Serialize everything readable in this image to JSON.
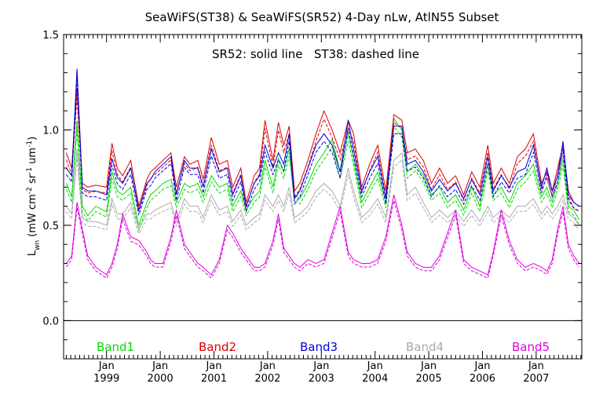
{
  "chart_data": {
    "type": "line",
    "title": "SeaWiFS(ST38) & SeaWiFS(SR52) 4-Day nLw, AtlN55 Subset",
    "annotation": "SR52: solid line   ST38: dashed line",
    "ylabel": "L_wn (mW cm^-2 sr^-1 um^-1)",
    "ylabel_main": "L",
    "ylabel_sub": "wn",
    "ylabel_rest": " (mW cm",
    "ylabel_exp1": "-2",
    "ylabel_mid": " sr",
    "ylabel_exp2": "-1",
    "ylabel_mid2": " um",
    "ylabel_exp3": "-1",
    "ylabel_end": ")",
    "ylim": [
      -0.2,
      1.5
    ],
    "xlim": [
      1998.2,
      2007.85
    ],
    "yticks": [
      0.0,
      0.5,
      1.0,
      1.5
    ],
    "ytick_labels": [
      "0.0",
      "0.5",
      "1.0",
      "1.5"
    ],
    "zero_line": 0.0,
    "xticks_top_label": "Jan",
    "xticks": [
      1999,
      2000,
      2001,
      2002,
      2003,
      2004,
      2005,
      2006,
      2007
    ],
    "xtick_labels": [
      "1999",
      "2000",
      "2001",
      "2002",
      "2003",
      "2004",
      "2005",
      "2006",
      "2007"
    ],
    "legend_placement": "bottom",
    "series": [
      {
        "name": "Band1",
        "color": "#00dd00",
        "x": [
          1998.25,
          1998.35,
          1998.45,
          1998.55,
          1998.65,
          1998.8,
          1999.0,
          1999.1,
          1999.2,
          1999.3,
          1999.45,
          1999.6,
          1999.75,
          1999.82,
          1999.9,
          2000.05,
          2000.2,
          2000.3,
          2000.45,
          2000.55,
          2000.7,
          2000.8,
          2000.95,
          2001.1,
          2001.25,
          2001.35,
          2001.5,
          2001.6,
          2001.75,
          2001.85,
          2001.95,
          2002.1,
          2002.2,
          2002.3,
          2002.4,
          2002.5,
          2002.6,
          2002.75,
          2002.9,
          2003.05,
          2003.2,
          2003.35,
          2003.5,
          2003.6,
          2003.75,
          2003.9,
          2004.05,
          2004.2,
          2004.35,
          2004.5,
          2004.6,
          2004.75,
          2004.9,
          2005.05,
          2005.2,
          2005.35,
          2005.5,
          2005.65,
          2005.8,
          2005.95,
          2006.1,
          2006.2,
          2006.35,
          2006.5,
          2006.65,
          2006.8,
          2006.95,
          2007.1,
          2007.2,
          2007.3,
          2007.4,
          2007.5,
          2007.6,
          2007.7,
          2007.8
        ],
        "values": [
          0.72,
          0.65,
          1.05,
          0.6,
          0.55,
          0.6,
          0.57,
          0.78,
          0.68,
          0.66,
          0.7,
          0.5,
          0.62,
          0.66,
          0.68,
          0.72,
          0.74,
          0.62,
          0.72,
          0.7,
          0.72,
          0.65,
          0.76,
          0.7,
          0.72,
          0.6,
          0.68,
          0.58,
          0.65,
          0.68,
          0.84,
          0.7,
          0.85,
          0.78,
          0.9,
          0.66,
          0.64,
          0.72,
          0.82,
          0.88,
          0.95,
          0.78,
          0.98,
          0.85,
          0.62,
          0.7,
          0.78,
          0.62,
          1.06,
          1.0,
          0.78,
          0.82,
          0.76,
          0.66,
          0.7,
          0.62,
          0.66,
          0.58,
          0.7,
          0.6,
          0.82,
          0.66,
          0.7,
          0.62,
          0.72,
          0.76,
          0.82,
          0.65,
          0.7,
          0.62,
          0.72,
          0.85,
          0.6,
          0.58,
          0.53
        ]
      },
      {
        "name": "Band2",
        "color": "#dd0000",
        "x": [
          1998.25,
          1998.35,
          1998.45,
          1998.55,
          1998.65,
          1998.8,
          1999.0,
          1999.1,
          1999.2,
          1999.3,
          1999.45,
          1999.6,
          1999.75,
          1999.82,
          1999.9,
          2000.05,
          2000.2,
          2000.3,
          2000.45,
          2000.55,
          2000.7,
          2000.8,
          2000.95,
          2001.1,
          2001.25,
          2001.35,
          2001.5,
          2001.6,
          2001.75,
          2001.85,
          2001.95,
          2002.1,
          2002.2,
          2002.3,
          2002.4,
          2002.5,
          2002.6,
          2002.75,
          2002.9,
          2003.05,
          2003.2,
          2003.35,
          2003.5,
          2003.6,
          2003.75,
          2003.9,
          2004.05,
          2004.2,
          2004.35,
          2004.5,
          2004.6,
          2004.75,
          2004.9,
          2005.05,
          2005.2,
          2005.35,
          2005.5,
          2005.65,
          2005.8,
          2005.95,
          2006.1,
          2006.2,
          2006.35,
          2006.5,
          2006.65,
          2006.8,
          2006.95,
          2007.1,
          2007.2,
          2007.3,
          2007.4,
          2007.5,
          2007.6,
          2007.7,
          2007.8
        ],
        "values": [
          0.88,
          0.8,
          1.22,
          0.72,
          0.7,
          0.71,
          0.7,
          0.93,
          0.8,
          0.76,
          0.84,
          0.6,
          0.74,
          0.78,
          0.8,
          0.84,
          0.88,
          0.7,
          0.86,
          0.82,
          0.84,
          0.74,
          0.96,
          0.82,
          0.84,
          0.7,
          0.8,
          0.62,
          0.76,
          0.8,
          1.05,
          0.84,
          1.04,
          0.92,
          1.02,
          0.68,
          0.72,
          0.84,
          0.98,
          1.1,
          1.0,
          0.88,
          1.05,
          0.98,
          0.7,
          0.82,
          0.92,
          0.68,
          1.08,
          1.05,
          0.88,
          0.9,
          0.84,
          0.72,
          0.8,
          0.72,
          0.76,
          0.66,
          0.78,
          0.7,
          0.92,
          0.72,
          0.8,
          0.72,
          0.86,
          0.9,
          0.98,
          0.72,
          0.78,
          0.68,
          0.8,
          0.92,
          0.68,
          0.62,
          0.6
        ]
      },
      {
        "name": "Band3",
        "color": "#0000dd",
        "x": [
          1998.25,
          1998.35,
          1998.45,
          1998.55,
          1998.65,
          1998.8,
          1999.0,
          1999.1,
          1999.2,
          1999.3,
          1999.45,
          1999.6,
          1999.75,
          1999.82,
          1999.9,
          2000.05,
          2000.2,
          2000.3,
          2000.45,
          2000.55,
          2000.7,
          2000.8,
          2000.95,
          2001.1,
          2001.25,
          2001.35,
          2001.5,
          2001.6,
          2001.75,
          2001.85,
          2001.95,
          2002.1,
          2002.2,
          2002.3,
          2002.4,
          2002.5,
          2002.6,
          2002.75,
          2002.9,
          2003.05,
          2003.2,
          2003.35,
          2003.5,
          2003.6,
          2003.75,
          2003.9,
          2004.05,
          2004.2,
          2004.35,
          2004.5,
          2004.6,
          2004.75,
          2004.9,
          2005.05,
          2005.2,
          2005.35,
          2005.5,
          2005.65,
          2005.8,
          2005.95,
          2006.1,
          2006.2,
          2006.35,
          2006.5,
          2006.65,
          2006.8,
          2006.95,
          2007.1,
          2007.2,
          2007.3,
          2007.4,
          2007.5,
          2007.6,
          2007.7,
          2007.8
        ],
        "values": [
          0.8,
          0.76,
          1.32,
          0.7,
          0.68,
          0.68,
          0.66,
          0.85,
          0.75,
          0.72,
          0.8,
          0.58,
          0.72,
          0.74,
          0.78,
          0.82,
          0.86,
          0.66,
          0.84,
          0.8,
          0.8,
          0.7,
          0.9,
          0.78,
          0.8,
          0.66,
          0.76,
          0.6,
          0.72,
          0.76,
          0.92,
          0.8,
          0.88,
          0.82,
          0.98,
          0.64,
          0.68,
          0.8,
          0.92,
          0.98,
          0.92,
          0.78,
          1.05,
          0.9,
          0.68,
          0.78,
          0.86,
          0.64,
          1.02,
          1.02,
          0.82,
          0.84,
          0.78,
          0.68,
          0.74,
          0.68,
          0.72,
          0.64,
          0.74,
          0.66,
          0.86,
          0.68,
          0.76,
          0.7,
          0.78,
          0.8,
          0.92,
          0.7,
          0.8,
          0.68,
          0.76,
          0.94,
          0.66,
          0.62,
          0.6
        ]
      },
      {
        "name": "Band4",
        "color": "#aaaaaa",
        "x": [
          1998.25,
          1998.35,
          1998.45,
          1998.55,
          1998.65,
          1998.8,
          1999.0,
          1999.1,
          1999.2,
          1999.3,
          1999.45,
          1999.6,
          1999.75,
          1999.82,
          1999.9,
          2000.05,
          2000.2,
          2000.3,
          2000.45,
          2000.55,
          2000.7,
          2000.8,
          2000.95,
          2001.1,
          2001.25,
          2001.35,
          2001.5,
          2001.6,
          2001.75,
          2001.85,
          2001.95,
          2002.1,
          2002.2,
          2002.3,
          2002.4,
          2002.5,
          2002.6,
          2002.75,
          2002.9,
          2003.05,
          2003.2,
          2003.35,
          2003.5,
          2003.6,
          2003.75,
          2003.9,
          2004.05,
          2004.2,
          2004.35,
          2004.5,
          2004.6,
          2004.75,
          2004.9,
          2005.05,
          2005.2,
          2005.35,
          2005.5,
          2005.65,
          2005.8,
          2005.95,
          2006.1,
          2006.2,
          2006.35,
          2006.5,
          2006.65,
          2006.8,
          2006.95,
          2007.1,
          2007.2,
          2007.3,
          2007.4,
          2007.5,
          2007.6,
          2007.7,
          2007.8
        ],
        "values": [
          0.6,
          0.56,
          0.9,
          0.54,
          0.52,
          0.52,
          0.5,
          0.64,
          0.56,
          0.56,
          0.62,
          0.48,
          0.56,
          0.56,
          0.58,
          0.6,
          0.62,
          0.52,
          0.64,
          0.6,
          0.6,
          0.54,
          0.66,
          0.58,
          0.6,
          0.52,
          0.58,
          0.5,
          0.54,
          0.56,
          0.66,
          0.6,
          0.66,
          0.6,
          0.7,
          0.54,
          0.56,
          0.6,
          0.68,
          0.72,
          0.68,
          0.6,
          0.8,
          0.68,
          0.54,
          0.58,
          0.64,
          0.54,
          0.84,
          0.88,
          0.66,
          0.7,
          0.62,
          0.54,
          0.58,
          0.54,
          0.58,
          0.52,
          0.58,
          0.52,
          0.6,
          0.54,
          0.58,
          0.54,
          0.6,
          0.6,
          0.64,
          0.56,
          0.6,
          0.56,
          0.6,
          0.66,
          0.56,
          0.54,
          0.5
        ]
      },
      {
        "name": "Band5",
        "color": "#dd00dd",
        "x": [
          1998.25,
          1998.35,
          1998.45,
          1998.55,
          1998.65,
          1998.8,
          1999.0,
          1999.1,
          1999.2,
          1999.3,
          1999.45,
          1999.6,
          1999.75,
          1999.82,
          1999.9,
          2000.05,
          2000.2,
          2000.3,
          2000.45,
          2000.55,
          2000.7,
          2000.8,
          2000.95,
          2001.1,
          2001.25,
          2001.35,
          2001.5,
          2001.6,
          2001.75,
          2001.85,
          2001.95,
          2002.1,
          2002.2,
          2002.3,
          2002.4,
          2002.5,
          2002.6,
          2002.75,
          2002.9,
          2003.05,
          2003.2,
          2003.35,
          2003.5,
          2003.6,
          2003.75,
          2003.9,
          2004.05,
          2004.2,
          2004.35,
          2004.5,
          2004.6,
          2004.75,
          2004.9,
          2005.05,
          2005.2,
          2005.35,
          2005.5,
          2005.65,
          2005.8,
          2005.95,
          2006.1,
          2006.2,
          2006.35,
          2006.5,
          2006.65,
          2006.8,
          2006.95,
          2007.1,
          2007.2,
          2007.3,
          2007.4,
          2007.5,
          2007.6,
          2007.7,
          2007.8
        ],
        "values": [
          0.3,
          0.34,
          0.62,
          0.48,
          0.34,
          0.28,
          0.24,
          0.3,
          0.4,
          0.56,
          0.44,
          0.42,
          0.36,
          0.32,
          0.3,
          0.3,
          0.44,
          0.58,
          0.4,
          0.36,
          0.3,
          0.28,
          0.24,
          0.32,
          0.5,
          0.46,
          0.38,
          0.34,
          0.28,
          0.28,
          0.3,
          0.42,
          0.56,
          0.38,
          0.34,
          0.3,
          0.28,
          0.32,
          0.3,
          0.32,
          0.46,
          0.6,
          0.36,
          0.32,
          0.3,
          0.3,
          0.32,
          0.44,
          0.66,
          0.5,
          0.36,
          0.3,
          0.28,
          0.28,
          0.34,
          0.46,
          0.58,
          0.32,
          0.28,
          0.26,
          0.24,
          0.36,
          0.58,
          0.42,
          0.32,
          0.28,
          0.3,
          0.28,
          0.26,
          0.32,
          0.48,
          0.6,
          0.4,
          0.34,
          0.3
        ]
      }
    ]
  }
}
